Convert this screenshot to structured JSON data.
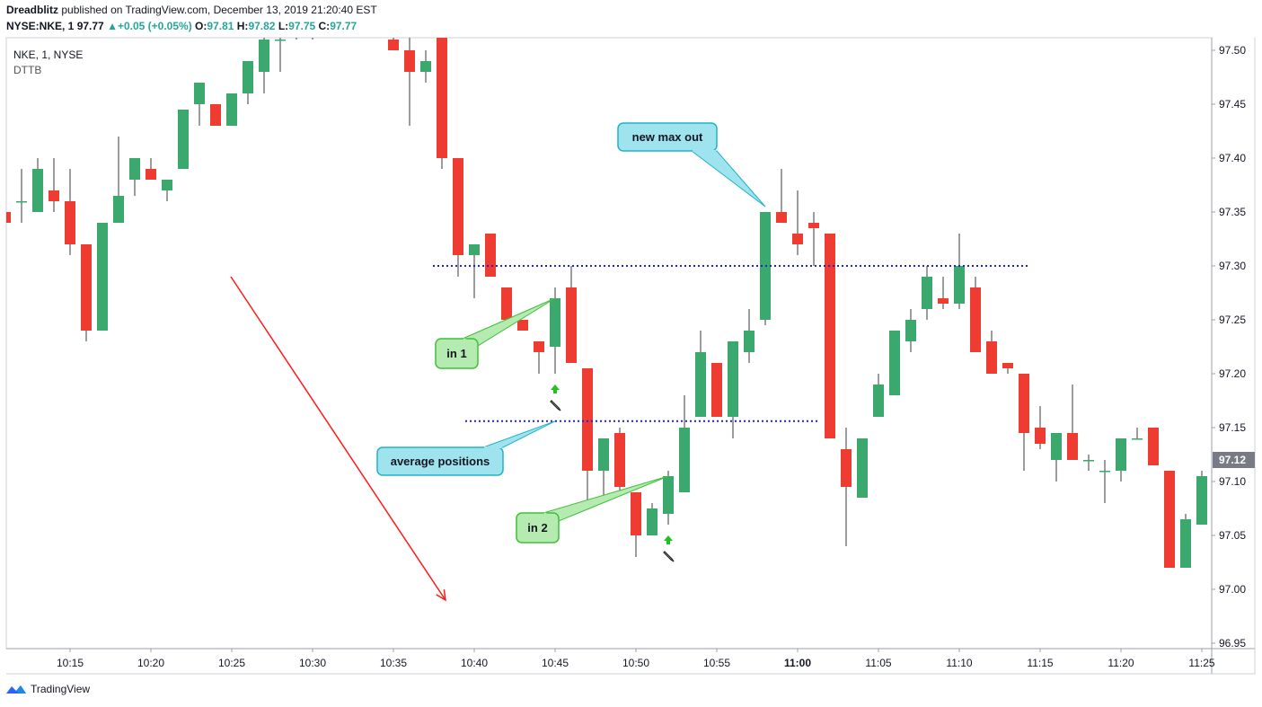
{
  "header": {
    "author": "Dreadblitz",
    "published_text": "published on TradingView.com, December 13, 2019 21:20:40 EST",
    "symbol": "NYSE:NKE, 1",
    "last": "97.77",
    "change": "+0.05 (+0.05%)",
    "o_label": "O:",
    "o": "97.81",
    "h_label": "H:",
    "h": "97.82",
    "l_label": "L:",
    "l": "97.75",
    "c_label": "C:",
    "c": "97.77"
  },
  "overlay": {
    "symbol": "NKE, 1, NYSE",
    "study": "DTTB"
  },
  "footer": {
    "brand": "TradingView"
  },
  "colors": {
    "up": "#3ba96d",
    "down": "#ef3c33",
    "annotation_line": "#2222cc",
    "arrow": "#ff1a1a",
    "callout_blue": "#9fe3ee",
    "callout_green": "#b5ebb0"
  },
  "chart_data": {
    "type": "candlestick",
    "y_range": [
      96.94,
      97.51
    ],
    "y_ticks": [
      "97.50",
      "97.45",
      "97.40",
      "97.35",
      "97.30",
      "97.25",
      "97.20",
      "97.15",
      "97.10",
      "97.05",
      "97.00",
      "96.95"
    ],
    "x_ticks": [
      "10:15",
      "10:20",
      "10:25",
      "10:30",
      "10:35",
      "10:40",
      "10:45",
      "10:50",
      "10:55",
      "11:00",
      "11:05",
      "11:10",
      "11:15",
      "11:20",
      "11:25"
    ],
    "current_price": "97.12",
    "x_start": "10:11",
    "candles": [
      {
        "t": "10:11",
        "o": 97.35,
        "h": 97.35,
        "l": 97.34,
        "c": 97.34
      },
      {
        "t": "10:12",
        "o": 97.36,
        "h": 97.39,
        "l": 97.34,
        "c": 97.36
      },
      {
        "t": "10:13",
        "o": 97.35,
        "h": 97.4,
        "l": 97.35,
        "c": 97.39
      },
      {
        "t": "10:14",
        "o": 97.37,
        "h": 97.4,
        "l": 97.35,
        "c": 97.36
      },
      {
        "t": "10:15",
        "o": 97.36,
        "h": 97.39,
        "l": 97.31,
        "c": 97.32
      },
      {
        "t": "10:16",
        "o": 97.32,
        "h": 97.32,
        "l": 97.23,
        "c": 97.24
      },
      {
        "t": "10:17",
        "o": 97.24,
        "h": 97.34,
        "l": 97.24,
        "c": 97.34
      },
      {
        "t": "10:18",
        "o": 97.34,
        "h": 97.42,
        "l": 97.34,
        "c": 97.365
      },
      {
        "t": "10:19",
        "o": 97.38,
        "h": 97.4,
        "l": 97.365,
        "c": 97.4
      },
      {
        "t": "10:20",
        "o": 97.39,
        "h": 97.4,
        "l": 97.38,
        "c": 97.38
      },
      {
        "t": "10:21",
        "o": 97.37,
        "h": 97.38,
        "l": 97.36,
        "c": 97.38
      },
      {
        "t": "10:22",
        "o": 97.39,
        "h": 97.445,
        "l": 97.39,
        "c": 97.445
      },
      {
        "t": "10:23",
        "o": 97.45,
        "h": 97.47,
        "l": 97.43,
        "c": 97.47
      },
      {
        "t": "10:24",
        "o": 97.45,
        "h": 97.45,
        "l": 97.43,
        "c": 97.43
      },
      {
        "t": "10:25",
        "o": 97.43,
        "h": 97.46,
        "l": 97.43,
        "c": 97.46
      },
      {
        "t": "10:26",
        "o": 97.46,
        "h": 97.49,
        "l": 97.45,
        "c": 97.49
      },
      {
        "t": "10:27",
        "o": 97.48,
        "h": 97.52,
        "l": 97.46,
        "c": 97.51
      },
      {
        "t": "10:28",
        "o": 97.51,
        "h": 97.52,
        "l": 97.48,
        "c": 97.51
      },
      {
        "t": "10:29",
        "o": 97.52,
        "h": 97.53,
        "l": 97.51,
        "c": 97.53
      },
      {
        "t": "10:30",
        "o": 97.52,
        "h": 97.53,
        "l": 97.51,
        "c": 97.53
      },
      {
        "t": "10:31",
        "o": 97.53,
        "h": 97.53,
        "l": 97.53,
        "c": 97.53
      },
      {
        "t": "10:32",
        "o": 97.53,
        "h": 97.53,
        "l": 97.53,
        "c": 97.53
      },
      {
        "t": "10:33",
        "o": 97.53,
        "h": 97.53,
        "l": 97.53,
        "c": 97.53
      },
      {
        "t": "10:34",
        "o": 97.53,
        "h": 97.53,
        "l": 97.53,
        "c": 97.53
      },
      {
        "t": "10:35",
        "o": 97.51,
        "h": 97.53,
        "l": 97.5,
        "c": 97.5
      },
      {
        "t": "10:36",
        "o": 97.5,
        "h": 97.52,
        "l": 97.43,
        "c": 97.48
      },
      {
        "t": "10:37",
        "o": 97.48,
        "h": 97.5,
        "l": 97.47,
        "c": 97.49
      },
      {
        "t": "10:38",
        "o": 97.52,
        "h": 97.53,
        "l": 97.39,
        "c": 97.4
      },
      {
        "t": "10:39",
        "o": 97.4,
        "h": 97.4,
        "l": 97.29,
        "c": 97.31
      },
      {
        "t": "10:40",
        "o": 97.31,
        "h": 97.32,
        "l": 97.27,
        "c": 97.32
      },
      {
        "t": "10:41",
        "o": 97.33,
        "h": 97.33,
        "l": 97.29,
        "c": 97.29
      },
      {
        "t": "10:42",
        "o": 97.28,
        "h": 97.28,
        "l": 97.25,
        "c": 97.25
      },
      {
        "t": "10:43",
        "o": 97.25,
        "h": 97.25,
        "l": 97.24,
        "c": 97.24
      },
      {
        "t": "10:44",
        "o": 97.23,
        "h": 97.23,
        "l": 97.2,
        "c": 97.22
      },
      {
        "t": "10:45",
        "o": 97.225,
        "h": 97.28,
        "l": 97.2,
        "c": 97.27
      },
      {
        "t": "10:46",
        "o": 97.28,
        "h": 97.3,
        "l": 97.21,
        "c": 97.21
      },
      {
        "t": "10:47",
        "o": 97.205,
        "h": 97.205,
        "l": 97.08,
        "c": 97.11
      },
      {
        "t": "10:48",
        "o": 97.11,
        "h": 97.14,
        "l": 97.08,
        "c": 97.14
      },
      {
        "t": "10:49",
        "o": 97.145,
        "h": 97.15,
        "l": 97.09,
        "c": 97.095
      },
      {
        "t": "10:50",
        "o": 97.09,
        "h": 97.09,
        "l": 97.03,
        "c": 97.05
      },
      {
        "t": "10:51",
        "o": 97.05,
        "h": 97.08,
        "l": 97.05,
        "c": 97.075
      },
      {
        "t": "10:52",
        "o": 97.07,
        "h": 97.11,
        "l": 97.06,
        "c": 97.105
      },
      {
        "t": "10:53",
        "o": 97.09,
        "h": 97.18,
        "l": 97.09,
        "c": 97.15
      },
      {
        "t": "10:54",
        "o": 97.16,
        "h": 97.24,
        "l": 97.16,
        "c": 97.22
      },
      {
        "t": "10:55",
        "o": 97.21,
        "h": 97.21,
        "l": 97.16,
        "c": 97.16
      },
      {
        "t": "10:56",
        "o": 97.16,
        "h": 97.23,
        "l": 97.14,
        "c": 97.23
      },
      {
        "t": "10:57",
        "o": 97.22,
        "h": 97.26,
        "l": 97.21,
        "c": 97.24
      },
      {
        "t": "10:58",
        "o": 97.25,
        "h": 97.35,
        "l": 97.245,
        "c": 97.35
      },
      {
        "t": "10:59",
        "o": 97.35,
        "h": 97.39,
        "l": 97.34,
        "c": 97.34
      },
      {
        "t": "11:00",
        "o": 97.33,
        "h": 97.37,
        "l": 97.31,
        "c": 97.32
      },
      {
        "t": "11:01",
        "o": 97.34,
        "h": 97.35,
        "l": 97.3,
        "c": 97.335
      },
      {
        "t": "11:02",
        "o": 97.33,
        "h": 97.33,
        "l": 97.14,
        "c": 97.14
      },
      {
        "t": "11:03",
        "o": 97.13,
        "h": 97.15,
        "l": 97.04,
        "c": 97.095
      },
      {
        "t": "11:04",
        "o": 97.085,
        "h": 97.14,
        "l": 97.085,
        "c": 97.14
      },
      {
        "t": "11:05",
        "o": 97.16,
        "h": 97.2,
        "l": 97.16,
        "c": 97.19
      },
      {
        "t": "11:06",
        "o": 97.18,
        "h": 97.24,
        "l": 97.18,
        "c": 97.24
      },
      {
        "t": "11:07",
        "o": 97.23,
        "h": 97.26,
        "l": 97.22,
        "c": 97.25
      },
      {
        "t": "11:08",
        "o": 97.26,
        "h": 97.3,
        "l": 97.25,
        "c": 97.29
      },
      {
        "t": "11:09",
        "o": 97.27,
        "h": 97.29,
        "l": 97.26,
        "c": 97.265
      },
      {
        "t": "11:10",
        "o": 97.265,
        "h": 97.33,
        "l": 97.26,
        "c": 97.3
      },
      {
        "t": "11:11",
        "o": 97.28,
        "h": 97.29,
        "l": 97.22,
        "c": 97.22
      },
      {
        "t": "11:12",
        "o": 97.23,
        "h": 97.24,
        "l": 97.2,
        "c": 97.2
      },
      {
        "t": "11:13",
        "o": 97.21,
        "h": 97.21,
        "l": 97.2,
        "c": 97.205
      },
      {
        "t": "11:14",
        "o": 97.2,
        "h": 97.2,
        "l": 97.11,
        "c": 97.145
      },
      {
        "t": "11:15",
        "o": 97.15,
        "h": 97.17,
        "l": 97.13,
        "c": 97.135
      },
      {
        "t": "11:16",
        "o": 97.12,
        "h": 97.145,
        "l": 97.1,
        "c": 97.145
      },
      {
        "t": "11:17",
        "o": 97.145,
        "h": 97.19,
        "l": 97.12,
        "c": 97.12
      },
      {
        "t": "11:18",
        "o": 97.12,
        "h": 97.125,
        "l": 97.11,
        "c": 97.12
      },
      {
        "t": "11:19",
        "o": 97.11,
        "h": 97.12,
        "l": 97.08,
        "c": 97.11
      },
      {
        "t": "11:20",
        "o": 97.11,
        "h": 97.14,
        "l": 97.1,
        "c": 97.14
      },
      {
        "t": "11:21",
        "o": 97.14,
        "h": 97.15,
        "l": 97.14,
        "c": 97.14
      },
      {
        "t": "11:22",
        "o": 97.15,
        "h": 97.15,
        "l": 97.115,
        "c": 97.115
      },
      {
        "t": "11:23",
        "o": 97.11,
        "h": 97.11,
        "l": 97.02,
        "c": 97.02
      },
      {
        "t": "11:24",
        "o": 97.02,
        "h": 97.07,
        "l": 97.02,
        "c": 97.065
      },
      {
        "t": "11:25",
        "o": 97.06,
        "h": 97.11,
        "l": 97.06,
        "c": 97.105
      },
      {
        "t": "11:26",
        "o": 97.105,
        "h": 97.12,
        "l": 97.09,
        "c": 97.12
      }
    ],
    "hlines": [
      {
        "name": "level-97.30",
        "price": 97.3,
        "from": "10:38",
        "to": "11:14"
      },
      {
        "name": "level-97.156",
        "price": 97.156,
        "from": "10:40",
        "to": "11:01"
      }
    ],
    "arrow": {
      "from_time": "10:25",
      "from_price": 97.29,
      "to_time": "10:38",
      "to_price": 96.99
    },
    "callouts": [
      {
        "name": "callout-new-max-out",
        "text": "new max out",
        "color": "blue",
        "target_time": "10:58",
        "target_price": 97.355
      },
      {
        "name": "callout-average-positions",
        "text": "average positions",
        "color": "blue",
        "target_time": "10:45",
        "target_price": 97.156
      },
      {
        "name": "callout-in-1",
        "text": "in 1",
        "color": "green",
        "target_time": "10:45",
        "target_price": 97.27
      },
      {
        "name": "callout-in-2",
        "text": "in 2",
        "color": "green",
        "target_time": "10:52",
        "target_price": 97.105
      }
    ],
    "markers": [
      {
        "time": "10:45",
        "price": 97.185
      },
      {
        "time": "10:52",
        "price": 97.045
      }
    ]
  }
}
